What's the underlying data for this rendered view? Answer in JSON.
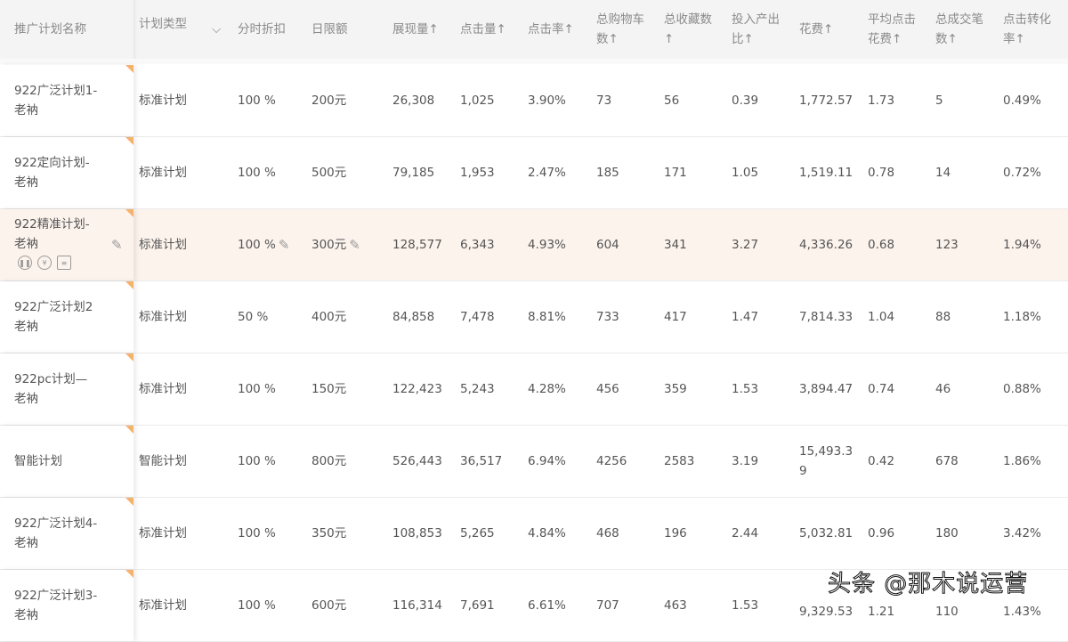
{
  "headers": {
    "name": "推广计划名称",
    "type": "计划类型",
    "discount": "分时折扣",
    "limit": "日限额",
    "impressions": "展现量↑",
    "clicks": "点击量↑",
    "ctr": "点击率↑",
    "cart": "总购物车\n数↑",
    "fav": "总收藏数\n↑",
    "roi": "投入产出\n比↑",
    "spend": "花费↑",
    "cpc": "平均点击\n花费↑",
    "orders": "总成交笔\n数↑",
    "cvr": "点击转化\n率↑"
  },
  "rows": [
    {
      "name": "922广泛计划1-\n老衲",
      "type": "标准计划",
      "discount": "100 %",
      "limit": "200元",
      "impressions": "26,308",
      "clicks": "1,025",
      "ctr": "3.90%",
      "cart": "73",
      "fav": "56",
      "roi": "0.39",
      "spend": "1,772.57",
      "cpc": "1.73",
      "orders": "5",
      "cvr": "0.49%"
    },
    {
      "name": "922定向计划-\n老衲",
      "type": "标准计划",
      "discount": "100 %",
      "limit": "500元",
      "impressions": "79,185",
      "clicks": "1,953",
      "ctr": "2.47%",
      "cart": "185",
      "fav": "171",
      "roi": "1.05",
      "spend": "1,519.11",
      "cpc": "0.78",
      "orders": "14",
      "cvr": "0.72%"
    },
    {
      "name": "922精准计划-\n老衲",
      "type": "标准计划",
      "discount": "100 %",
      "limit": "300元",
      "impressions": "128,577",
      "clicks": "6,343",
      "ctr": "4.93%",
      "cart": "604",
      "fav": "341",
      "roi": "3.27",
      "spend": "4,336.26",
      "cpc": "0.68",
      "orders": "123",
      "cvr": "1.94%"
    },
    {
      "name": "922广泛计划2\n老衲",
      "type": "标准计划",
      "discount": "50 %",
      "limit": "400元",
      "impressions": "84,858",
      "clicks": "7,478",
      "ctr": "8.81%",
      "cart": "733",
      "fav": "417",
      "roi": "1.47",
      "spend": "7,814.33",
      "cpc": "1.04",
      "orders": "88",
      "cvr": "1.18%"
    },
    {
      "name": "922pc计划—\n老衲",
      "type": "标准计划",
      "discount": "100 %",
      "limit": "150元",
      "impressions": "122,423",
      "clicks": "5,243",
      "ctr": "4.28%",
      "cart": "456",
      "fav": "359",
      "roi": "1.53",
      "spend": "3,894.47",
      "cpc": "0.74",
      "orders": "46",
      "cvr": "0.88%"
    },
    {
      "name": "智能计划",
      "type": "智能计划",
      "discount": "100 %",
      "limit": "800元",
      "impressions": "526,443",
      "clicks": "36,517",
      "ctr": "6.94%",
      "cart": "4256",
      "fav": "2583",
      "roi": "3.19",
      "spend": "15,493.3\n9",
      "cpc": "0.42",
      "orders": "678",
      "cvr": "1.86%"
    },
    {
      "name": "922广泛计划4-\n老衲",
      "type": "标准计划",
      "discount": "100 %",
      "limit": "350元",
      "impressions": "108,853",
      "clicks": "5,265",
      "ctr": "4.84%",
      "cart": "468",
      "fav": "196",
      "roi": "2.44",
      "spend": "5,032.81",
      "cpc": "0.96",
      "orders": "180",
      "cvr": "3.42%"
    },
    {
      "name": "922广泛计划3-\n老衲",
      "type": "标准计划",
      "discount": "100 %",
      "limit": "600元",
      "impressions": "116,314",
      "clicks": "7,691",
      "ctr": "6.61%",
      "cart": "707",
      "fav": "463",
      "roi": "1.53",
      "spend": "9,329.53",
      "cpc": "1.21",
      "orders": "110",
      "cvr": "1.43%"
    }
  ],
  "highlight_row": 2,
  "watermark": "头条 @那木说运营",
  "accent": "#f6b26b"
}
